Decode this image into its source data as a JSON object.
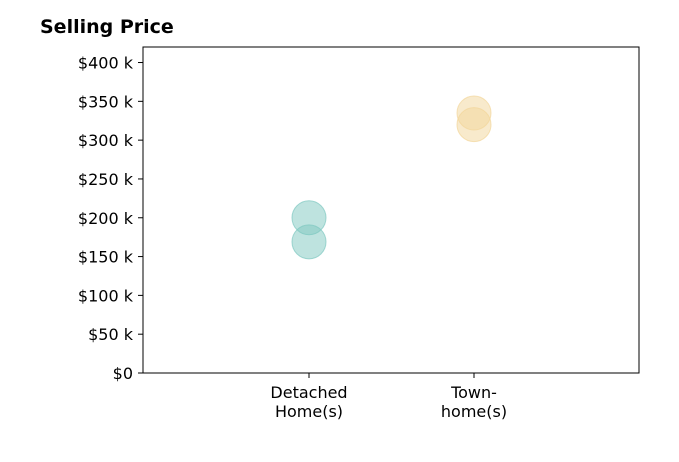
{
  "chart_data": {
    "type": "scatter",
    "title": "Selling Price",
    "xlabel": "",
    "ylabel": "",
    "categories": [
      "Detached\nHome(s)",
      "Town-\nhome(s)"
    ],
    "yticks": [
      "$0",
      "$50 k",
      "$100 k",
      "$150 k",
      "$200 k",
      "$250 k",
      "$300 k",
      "$350 k",
      "$400 k"
    ],
    "ylim": [
      0,
      420000
    ],
    "grid": false,
    "series": [
      {
        "category": "Detached\nHome(s)",
        "values": [
          200000,
          169000
        ],
        "color": "#7ec8c0"
      },
      {
        "category": "Town-\nhome(s)",
        "values": [
          335000,
          320000
        ],
        "color": "#f2d59a"
      }
    ]
  }
}
